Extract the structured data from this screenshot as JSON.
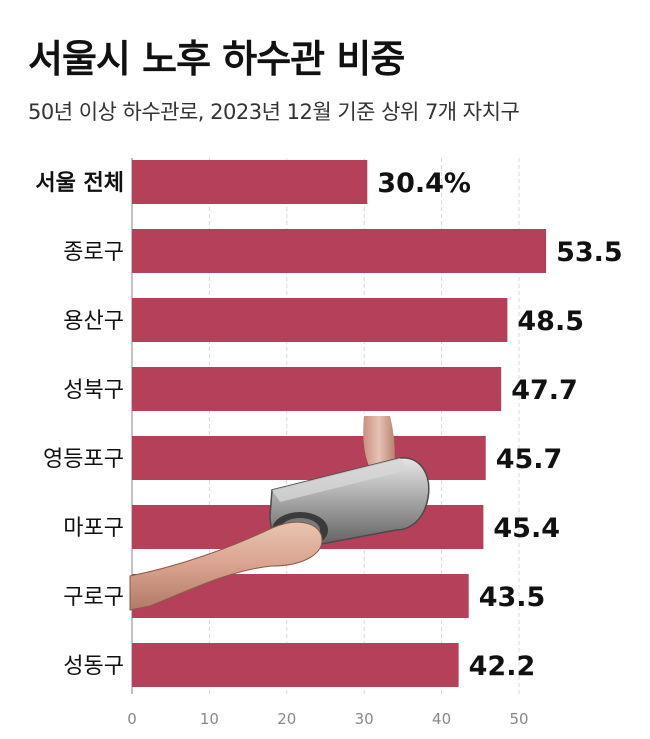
{
  "title": "서울시 노후 하수관 비중",
  "subtitle": "50년 이상 하수관로, 2023년 12월 기준 상위 7개 자치구",
  "colors": {
    "bar": "#b5405a",
    "grid": "#d9d9d9",
    "text": "#111111",
    "tick": "#888888"
  },
  "chart_data": {
    "type": "bar",
    "orientation": "horizontal",
    "categories": [
      "서울 전체",
      "종로구",
      "용산구",
      "성북구",
      "영등포구",
      "마포구",
      "구로구",
      "성동구"
    ],
    "values": [
      30.4,
      53.5,
      48.5,
      47.7,
      45.7,
      45.4,
      43.5,
      42.2
    ],
    "value_labels": [
      "30.4%",
      "53.5",
      "48.5",
      "47.7",
      "45.7",
      "45.4",
      "43.5",
      "42.2"
    ],
    "xlim": [
      0,
      55
    ],
    "x_ticks": [
      0,
      10,
      20,
      30,
      40,
      50
    ],
    "grid": "vertical dashed",
    "legend": "none"
  }
}
